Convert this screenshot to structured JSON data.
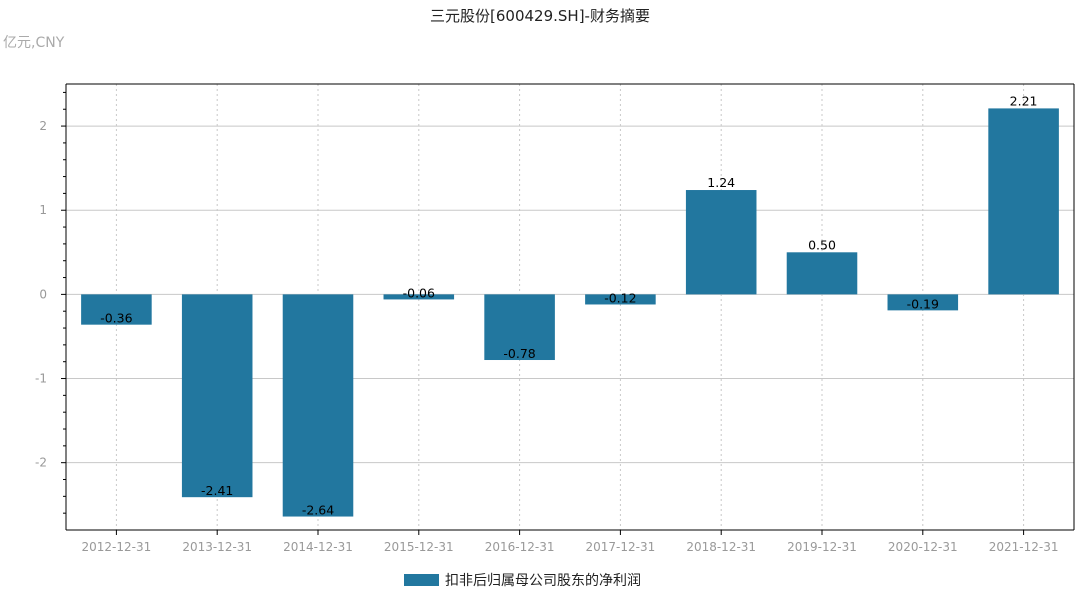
{
  "chart_data": {
    "type": "bar",
    "title": "三元股份[600429.SH]-财务摘要",
    "unit_label": "亿元,CNY",
    "categories": [
      "2012-12-31",
      "2013-12-31",
      "2014-12-31",
      "2015-12-31",
      "2016-12-31",
      "2017-12-31",
      "2018-12-31",
      "2019-12-31",
      "2020-12-31",
      "2021-12-31"
    ],
    "series": [
      {
        "name": "扣非后归属母公司股东的净利润",
        "values": [
          -0.36,
          -2.41,
          -2.64,
          -0.06,
          -0.78,
          -0.12,
          1.24,
          0.5,
          -0.19,
          2.21
        ],
        "labels": [
          "-0.36",
          "-2.41",
          "-2.64",
          "-0.06",
          "-0.78",
          "-0.12",
          "1.24",
          "0.50",
          "-0.19",
          "2.21"
        ],
        "color": "#22779f"
      }
    ],
    "ylim": [
      -2.8,
      2.5
    ],
    "yticks": [
      -2,
      -1,
      0,
      1,
      2
    ],
    "grid": true,
    "legend": "bottom-center",
    "colors": {
      "bar": "#22779f",
      "grid": "#c8c8c8",
      "axis": "#000000",
      "tick_text": "#999999"
    }
  }
}
